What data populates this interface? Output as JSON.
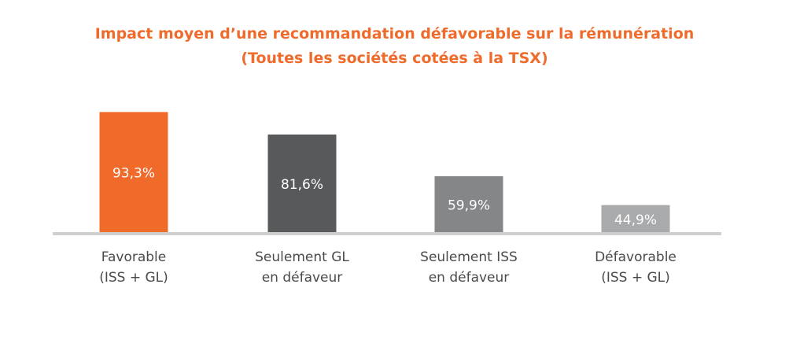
{
  "colors": {
    "title": "#ef6b2b",
    "axis": "#cfcfcf"
  },
  "chart_data": {
    "type": "bar",
    "title": "Impact moyen d’une recommandation défavorable sur la rémunération",
    "subtitle": "(Toutes les sociétés cotées à la TSX)",
    "categories": [
      [
        "Favorable",
        "(ISS + GL)"
      ],
      [
        "Seulement GL",
        "en défaveur"
      ],
      [
        "Seulement ISS",
        "en défaveur"
      ],
      [
        "Défavorable",
        "(ISS + GL)"
      ]
    ],
    "values": [
      93.3,
      81.6,
      59.9,
      44.9
    ],
    "value_labels": [
      "93,3%",
      "81,6%",
      "59,9%",
      "44,9%"
    ],
    "bar_colors": [
      "#f06a2a",
      "#58595b",
      "#858688",
      "#a9aaac"
    ],
    "xlabel": "",
    "ylabel": "",
    "ylim": [
      30,
      100
    ],
    "grid": false,
    "legend": "none"
  }
}
